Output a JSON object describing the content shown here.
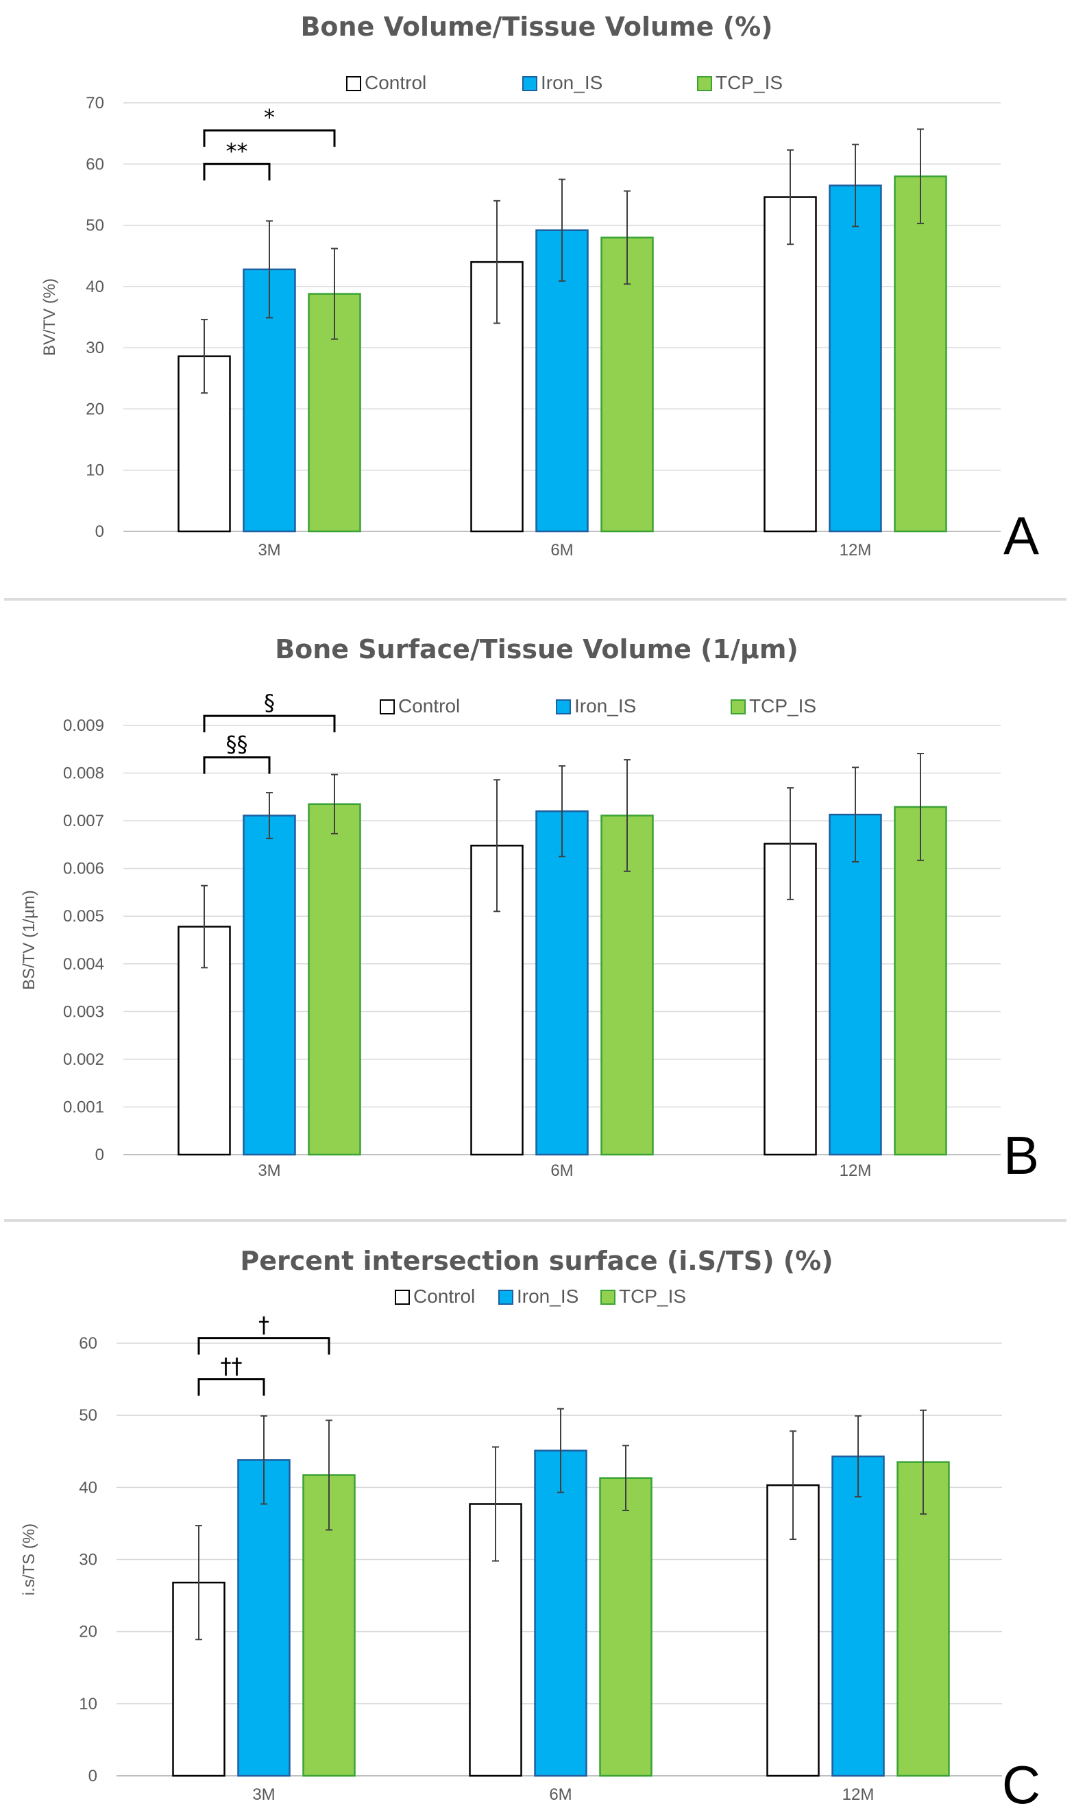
{
  "colors": {
    "control": "#ffffff",
    "iron": "#00b0f0",
    "tcp": "#92d050"
  },
  "chart_data": [
    {
      "type": "bar",
      "panel_label": "A",
      "title": "Bone Volume/Tissue Volume (%)",
      "ylabel": "BV/TV (%)",
      "xlabel": "",
      "ylim": [
        0,
        70
      ],
      "ytick_step": 10,
      "ytick_labels": [
        "0",
        "10",
        "20",
        "30",
        "40",
        "50",
        "60",
        "70"
      ],
      "categories": [
        "3M",
        "6M",
        "12M"
      ],
      "series": [
        {
          "name": "Control",
          "values": [
            28.6,
            44.0,
            54.6
          ],
          "errors": [
            6.0,
            10.0,
            7.7
          ]
        },
        {
          "name": "Iron_IS",
          "values": [
            42.8,
            49.2,
            56.5
          ],
          "errors": [
            7.9,
            8.3,
            6.7
          ]
        },
        {
          "name": "TCP_IS",
          "values": [
            38.8,
            48.0,
            58.0
          ],
          "errors": [
            7.4,
            7.6,
            7.7
          ]
        }
      ],
      "significance": [
        {
          "from_series": 0,
          "to_series": 1,
          "category": 0,
          "label": "**",
          "level": 60
        },
        {
          "from_series": 0,
          "to_series": 2,
          "category": 0,
          "label": "*",
          "level": 65.5
        }
      ]
    },
    {
      "type": "bar",
      "panel_label": "B",
      "title": "Bone Surface/Tissue Volume (1/µm)",
      "ylabel": "BS/TV (1/µm)",
      "xlabel": "",
      "ylim": [
        0,
        0.009
      ],
      "ytick_step": 0.001,
      "ytick_labels": [
        "0",
        "0.001",
        "0.002",
        "0.003",
        "0.004",
        "0.005",
        "0.006",
        "0.007",
        "0.008",
        "0.009"
      ],
      "categories": [
        "3M",
        "6M",
        "12M"
      ],
      "series": [
        {
          "name": "Control",
          "values": [
            0.00478,
            0.00648,
            0.00652
          ],
          "errors": [
            0.00086,
            0.00138,
            0.00117
          ]
        },
        {
          "name": "Iron_IS",
          "values": [
            0.00711,
            0.0072,
            0.00713
          ],
          "errors": [
            0.00048,
            0.00095,
            0.00099
          ]
        },
        {
          "name": "TCP_IS",
          "values": [
            0.00735,
            0.00711,
            0.00729
          ],
          "errors": [
            0.00062,
            0.00117,
            0.00112
          ]
        }
      ],
      "significance": [
        {
          "from_series": 0,
          "to_series": 1,
          "category": 0,
          "label": "§§",
          "level": 0.00833
        },
        {
          "from_series": 0,
          "to_series": 2,
          "category": 0,
          "label": "§",
          "level": 0.0092
        }
      ]
    },
    {
      "type": "bar",
      "panel_label": "C",
      "title": "Percent intersection surface (i.S/TS) (%)",
      "ylabel": "i.s/TS (%)",
      "xlabel": "",
      "ylim": [
        0,
        60
      ],
      "ytick_step": 10,
      "ytick_labels": [
        "0",
        "10",
        "20",
        "30",
        "40",
        "50",
        "60"
      ],
      "categories": [
        "3M",
        "6M",
        "12M"
      ],
      "series": [
        {
          "name": "Control",
          "values": [
            26.8,
            37.7,
            40.3
          ],
          "errors": [
            7.9,
            7.9,
            7.5
          ]
        },
        {
          "name": "Iron_IS",
          "values": [
            43.8,
            45.1,
            44.3
          ],
          "errors": [
            6.1,
            5.8,
            5.6
          ]
        },
        {
          "name": "TCP_IS",
          "values": [
            41.7,
            41.3,
            43.5
          ],
          "errors": [
            7.6,
            4.5,
            7.2
          ]
        }
      ],
      "significance": [
        {
          "from_series": 0,
          "to_series": 1,
          "category": 0,
          "label": "††",
          "level": 55
        },
        {
          "from_series": 0,
          "to_series": 2,
          "category": 0,
          "label": "†",
          "level": 60.7
        }
      ]
    }
  ]
}
